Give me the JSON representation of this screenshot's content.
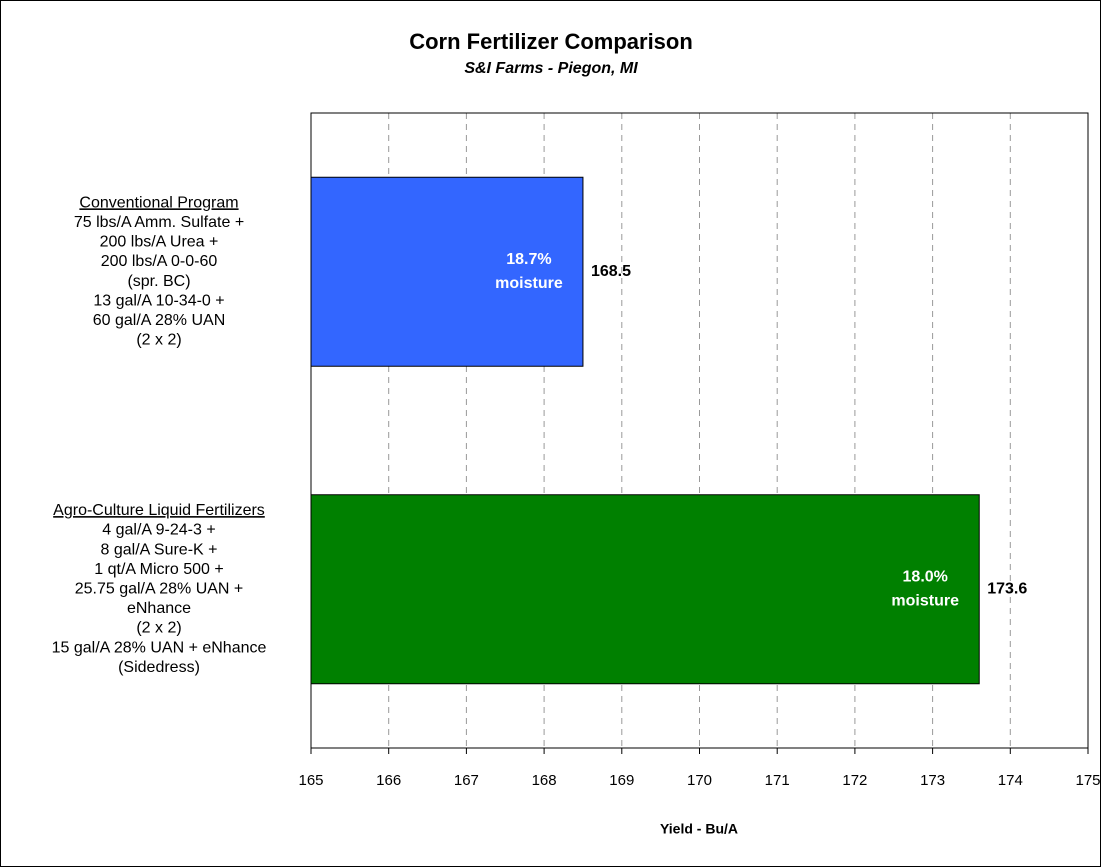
{
  "chart_data": {
    "type": "barh",
    "title": "Corn Fertilizer Comparison",
    "subtitle": "S&I Farms - Piegon, MI",
    "x_label": "Yield - Bu/A",
    "categories": [
      [
        "Conventional Program",
        "75 lbs/A Amm. Sulfate +",
        "200 lbs/A Urea +",
        "200 lbs/A 0-0-60",
        "(spr. BC)",
        "13 gal/A 10-34-0 +",
        "60 gal/A 28% UAN",
        "(2 x 2)"
      ],
      [
        "Agro-Culture Liquid Fertilizers",
        "4 gal/A 9-24-3 +",
        "8 gal/A Sure-K +",
        "1 qt/A Micro 500 +",
        "25.75 gal/A 28% UAN +",
        "eNhance",
        "(2 x 2)",
        "15 gal/A 28% UAN + eNhance",
        "(Sidedress)"
      ]
    ],
    "values": [
      168.5,
      173.6
    ],
    "colors": [
      "#3366ff",
      "#008000"
    ],
    "annotations": [
      [
        "18.7%",
        "moisture"
      ],
      [
        "18.0%",
        "moisture"
      ]
    ],
    "xlim": [
      165,
      175
    ],
    "xticks": [
      165,
      166,
      167,
      168,
      169,
      170,
      171,
      172,
      173,
      174,
      175
    ],
    "grid": true
  }
}
